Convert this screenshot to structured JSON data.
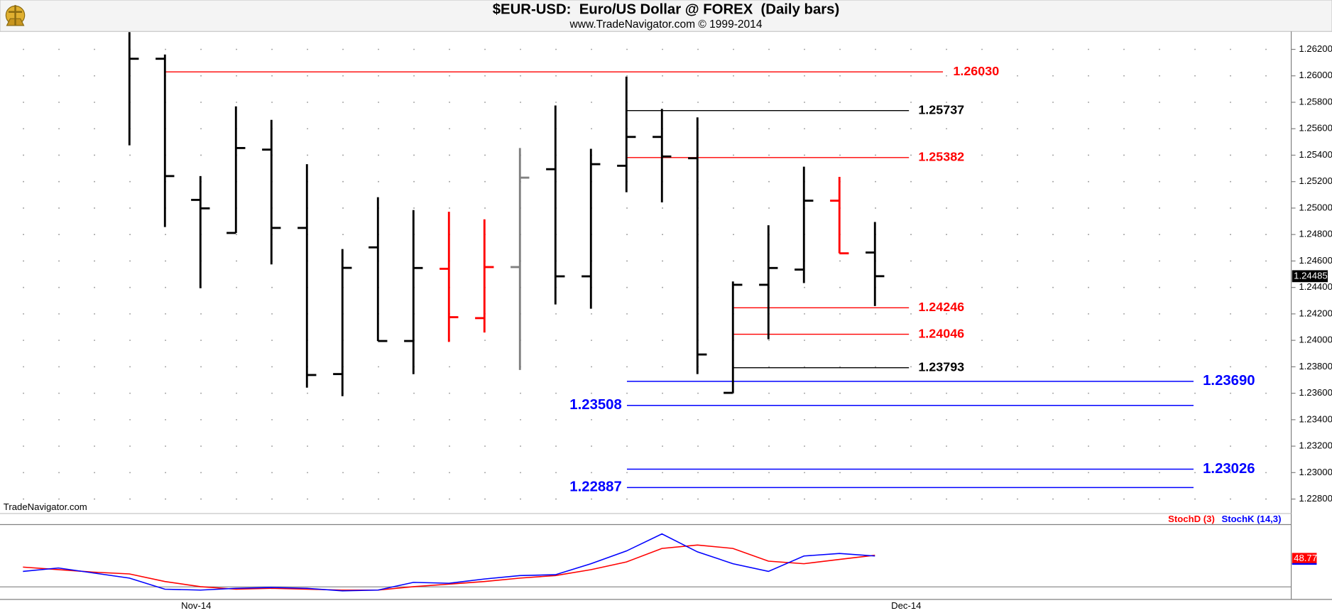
{
  "chart_data": [
    {
      "type": "ohlc",
      "title": "$EUR-USD:  Euro/US Dollar @ FOREX  (Daily bars)",
      "subtitle": "www.TradeNavigator.com © 1999-2014",
      "watermark": "TradeNavigator.com",
      "categories": [
        null,
        null,
        null,
        null,
        null,
        "Nov-14",
        null,
        null,
        null,
        null,
        null,
        null,
        null,
        null,
        null,
        null,
        null,
        null,
        null,
        null,
        null,
        null,
        null,
        null,
        null,
        "Dec-14",
        null,
        null,
        null,
        null,
        null,
        null,
        null,
        null,
        null,
        null
      ],
      "open": [
        null,
        null,
        null,
        null,
        1.26129,
        1.25062,
        1.24812,
        1.25442,
        1.2485,
        1.23745,
        1.24703,
        1.23995,
        1.24541,
        1.24168,
        1.24554,
        1.25294,
        1.24484,
        1.2532,
        1.25538,
        1.25377,
        1.23603,
        1.2442,
        1.24535,
        1.25056,
        1.24664,
        null,
        null,
        null,
        null,
        null,
        null,
        null,
        null,
        null,
        null,
        null
      ],
      "high": [
        null,
        null,
        null,
        1.2633,
        1.26161,
        1.25242,
        1.25769,
        1.25667,
        1.25332,
        1.2469,
        1.25082,
        1.24985,
        1.24972,
        1.24915,
        1.25454,
        1.25776,
        1.25448,
        1.25994,
        1.2575,
        1.25686,
        1.24445,
        1.2487,
        1.25313,
        1.25236,
        1.24895,
        null,
        null,
        null,
        null,
        null,
        null,
        null,
        null,
        null,
        null,
        null
      ],
      "low": [
        null,
        null,
        null,
        1.25474,
        1.24857,
        1.24394,
        1.24812,
        1.24574,
        1.23642,
        1.23578,
        1.23995,
        1.23744,
        1.23988,
        1.24059,
        1.23776,
        1.24271,
        1.24239,
        1.2512,
        1.25043,
        1.23745,
        1.23603,
        1.24008,
        1.24433,
        1.24658,
        1.24259,
        null,
        null,
        null,
        null,
        null,
        null,
        null,
        null,
        null,
        null,
        null
      ],
      "close": [
        null,
        null,
        null,
        1.26129,
        1.25242,
        1.24998,
        1.25454,
        1.2485,
        1.23738,
        1.24548,
        1.23995,
        1.24547,
        1.24175,
        1.24554,
        1.2523,
        1.24484,
        1.25332,
        1.25538,
        1.2539,
        1.23893,
        1.2442,
        1.24547,
        1.25056,
        1.24658,
        1.24485,
        null,
        null,
        null,
        null,
        null,
        null,
        null,
        null,
        null,
        null,
        null
      ],
      "colors": [
        null,
        null,
        null,
        "#000000",
        "#000000",
        "#000000",
        "#000000",
        "#000000",
        "#000000",
        "#000000",
        "#000000",
        "#000000",
        "#ff0000",
        "#ff0000",
        "#808080",
        "#000000",
        "#000000",
        "#000000",
        "#000000",
        "#000000",
        "#000000",
        "#000000",
        "#000000",
        "#ff0000",
        "#000000",
        null,
        null,
        null,
        null,
        null,
        null,
        null,
        null,
        null,
        null,
        null
      ],
      "ylim": [
        1.22697,
        1.26329
      ],
      "yticks": [
        {
          "value": 1.262,
          "label": "1.26200"
        },
        {
          "value": 1.26,
          "label": "1.26000"
        },
        {
          "value": 1.258,
          "label": "1.25800"
        },
        {
          "value": 1.256,
          "label": "1.25600"
        },
        {
          "value": 1.254,
          "label": "1.25400"
        },
        {
          "value": 1.252,
          "label": "1.25200"
        },
        {
          "value": 1.25,
          "label": "1.25000"
        },
        {
          "value": 1.248,
          "label": "1.24800"
        },
        {
          "value": 1.246,
          "label": "1.24600"
        },
        {
          "value": 1.244,
          "label": "1.24400"
        },
        {
          "value": 1.242,
          "label": "1.24200"
        },
        {
          "value": 1.24,
          "label": "1.24000"
        },
        {
          "value": 1.238,
          "label": "1.23800"
        },
        {
          "value": 1.236,
          "label": "1.23600"
        },
        {
          "value": 1.234,
          "label": "1.23400"
        },
        {
          "value": 1.232,
          "label": "1.23200"
        },
        {
          "value": 1.23,
          "label": "1.23000"
        },
        {
          "value": 1.228,
          "label": "1.22800"
        }
      ],
      "grid": "dotted",
      "levels": {
        "values": [
          1.2603,
          1.25737,
          1.25382,
          1.24246,
          1.24046,
          1.23793,
          1.2369,
          1.23508,
          1.23026,
          1.22887
        ],
        "value_labels": [
          "1.26030",
          "1.25737",
          "1.25382",
          "1.24246",
          "1.24046",
          "1.23793",
          "1.23690",
          "1.23508",
          "1.23026",
          "1.22887"
        ],
        "colors": [
          "#ff0000",
          "#000000",
          "#ff0000",
          "#ff0000",
          "#ff0000",
          "#000000",
          "#0000ff",
          "#0000ff",
          "#0000ff",
          "#0000ff"
        ]
      },
      "last_price": 1.24485
    },
    {
      "type": "line",
      "ylim": [
        8,
        84
      ],
      "hline": 20,
      "series": [
        {
          "name": "StochD (3)",
          "color": "#ff0000",
          "values": [
            40.3,
            37.7,
            35.1,
            33.3,
            25.5,
            20.2,
            17.6,
            18.5,
            17.6,
            16.7,
            16.7,
            20.2,
            22.8,
            25.5,
            29.0,
            31.6,
            37.7,
            45.6,
            59.5,
            63.0,
            59.5,
            46.4,
            43.8,
            48.2,
            52.5,
            null,
            null,
            null,
            null,
            null,
            null,
            null,
            null,
            null,
            null,
            null
          ]
        },
        {
          "name": "StochK (14,3)",
          "color": "#0000ff",
          "values": [
            35.9,
            39.4,
            34.2,
            29.0,
            17.6,
            16.7,
            18.5,
            19.4,
            18.5,
            15.9,
            16.7,
            24.6,
            23.7,
            28.1,
            31.6,
            32.5,
            43.8,
            56.9,
            74.4,
            56.0,
            43.8,
            35.9,
            51.7,
            54.3,
            51.7,
            null,
            null,
            null,
            null,
            null,
            null,
            null,
            null,
            null,
            null,
            null
          ]
        }
      ],
      "last_value": 48.77
    }
  ]
}
